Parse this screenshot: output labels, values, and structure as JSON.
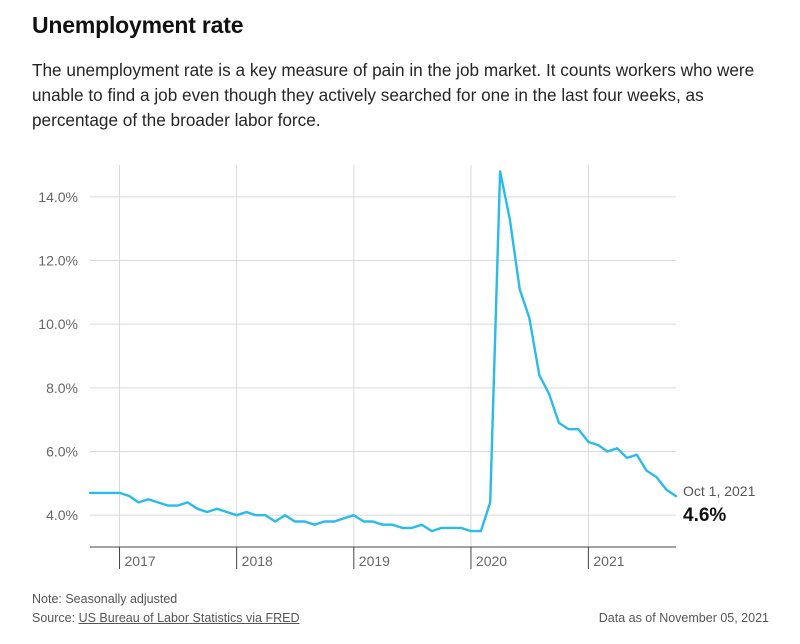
{
  "header": {
    "title": "Unemployment rate",
    "description": "The unemployment rate is a key measure of pain in the job market. It counts workers who were unable to find a job even though they actively searched for one in the last four weeks, as percentage of the broader labor force."
  },
  "footer": {
    "note": "Note: Seasonally adjusted",
    "source_prefix": "Source: ",
    "source_link": "US Bureau of Labor Statistics via FRED",
    "data_as_of": "Data as of November 05, 2021"
  },
  "colors": {
    "line": "#2bbbe8",
    "grid": "#d9d9d9",
    "axis": "#444444"
  },
  "chart_data": {
    "type": "line",
    "title": "",
    "xlabel": "",
    "ylabel": "",
    "ylim": [
      3.0,
      15.0
    ],
    "y_ticks": [
      4,
      6,
      8,
      10,
      12,
      14
    ],
    "y_tick_labels": [
      "4.0%",
      "6.0%",
      "8.0%",
      "10.0%",
      "12.0%",
      "14.0%"
    ],
    "x_range": [
      "2016-10-01",
      "2021-10-01"
    ],
    "x_ticks": [
      "2017-01-01",
      "2018-01-01",
      "2019-01-01",
      "2020-01-01",
      "2021-01-01"
    ],
    "x_tick_labels": [
      "2017",
      "2018",
      "2019",
      "2020",
      "2021"
    ],
    "grid": true,
    "series": [
      {
        "x": [
          "2016-10-01",
          "2016-11-01",
          "2016-12-01",
          "2017-01-01",
          "2017-02-01",
          "2017-03-01",
          "2017-04-01",
          "2017-05-01",
          "2017-06-01",
          "2017-07-01",
          "2017-08-01",
          "2017-09-01",
          "2017-10-01",
          "2017-11-01",
          "2017-12-01",
          "2018-01-01",
          "2018-02-01",
          "2018-03-01",
          "2018-04-01",
          "2018-05-01",
          "2018-06-01",
          "2018-07-01",
          "2018-08-01",
          "2018-09-01",
          "2018-10-01",
          "2018-11-01",
          "2018-12-01",
          "2019-01-01",
          "2019-02-01",
          "2019-03-01",
          "2019-04-01",
          "2019-05-01",
          "2019-06-01",
          "2019-07-01",
          "2019-08-01",
          "2019-09-01",
          "2019-10-01",
          "2019-11-01",
          "2019-12-01",
          "2020-01-01",
          "2020-02-01",
          "2020-03-01",
          "2020-04-01",
          "2020-05-01",
          "2020-06-01",
          "2020-07-01",
          "2020-08-01",
          "2020-09-01",
          "2020-10-01",
          "2020-11-01",
          "2020-12-01",
          "2021-01-01",
          "2021-02-01",
          "2021-03-01",
          "2021-04-01",
          "2021-05-01",
          "2021-06-01",
          "2021-07-01",
          "2021-08-01",
          "2021-09-01",
          "2021-10-01"
        ],
        "values": [
          4.7,
          4.7,
          4.7,
          4.7,
          4.6,
          4.4,
          4.5,
          4.4,
          4.3,
          4.3,
          4.4,
          4.2,
          4.1,
          4.2,
          4.1,
          4.0,
          4.1,
          4.0,
          4.0,
          3.8,
          4.0,
          3.8,
          3.8,
          3.7,
          3.8,
          3.8,
          3.9,
          4.0,
          3.8,
          3.8,
          3.7,
          3.7,
          3.6,
          3.6,
          3.7,
          3.5,
          3.6,
          3.6,
          3.6,
          3.5,
          3.5,
          4.4,
          14.8,
          13.3,
          11.1,
          10.2,
          8.4,
          7.8,
          6.9,
          6.7,
          6.7,
          6.3,
          6.2,
          6.0,
          6.1,
          5.8,
          5.9,
          5.4,
          5.2,
          4.8,
          4.6
        ]
      }
    ],
    "annotation": {
      "date_label": "Oct 1, 2021",
      "value_label": "4.6%"
    }
  }
}
